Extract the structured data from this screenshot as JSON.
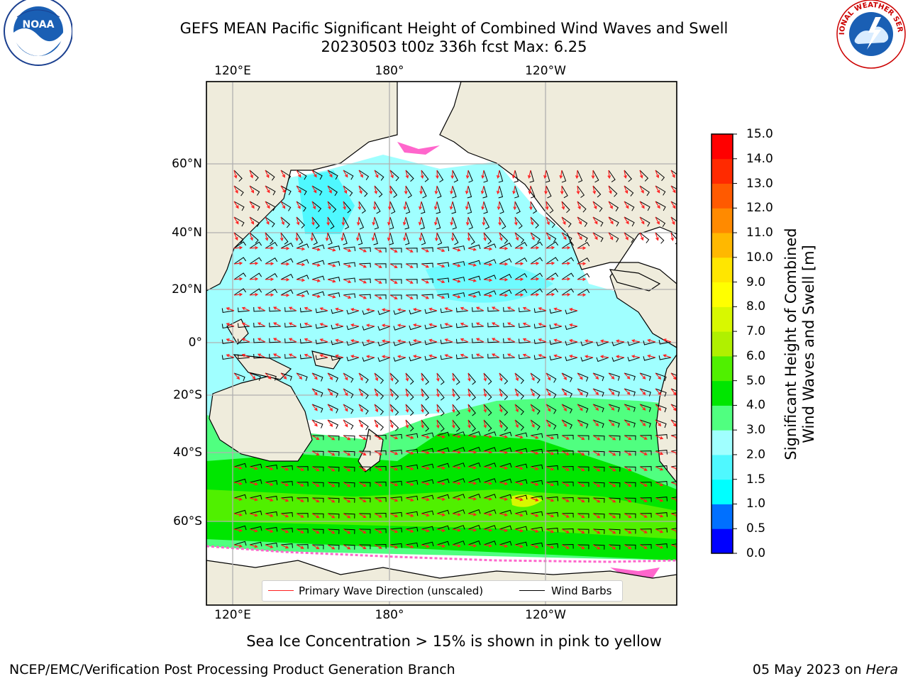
{
  "title": {
    "line1": "GEFS MEAN Pacific Significant Height of Combined Wind Waves and Swell",
    "line2": "20230503 t00z 336h fcst   Max: 6.25"
  },
  "logos": {
    "left": {
      "icon": "noaa-logo",
      "text": "NOAA"
    },
    "right": {
      "icon": "national-weather-service-logo",
      "text": "NATIONAL WEATHER SERVICE"
    }
  },
  "map": {
    "lon_ticks_top": [
      "120°E",
      "180°",
      "120°W"
    ],
    "lon_ticks_bottom": [
      "120°E",
      "180°",
      "120°W"
    ],
    "lat_ticks": [
      "60°N",
      "40°N",
      "20°N",
      "0°",
      "20°S",
      "40°S",
      "60°S"
    ],
    "colors": {
      "land": "#efecdc",
      "coast": "#000000",
      "grid": "#b0b0b0",
      "wave_arrow": "#ff2020",
      "barb": "#000000",
      "sea_ice": "#ff66cc"
    },
    "legend": {
      "primary_wave": "Primary Wave Direction (unscaled)",
      "barbs": "Wind Barbs"
    }
  },
  "colorbar": {
    "label_line1": "Significant Height of Combined",
    "label_line2": "Wind Waves and Swell [m]",
    "ticks": [
      "0.0",
      "0.5",
      "1.0",
      "1.5",
      "2.0",
      "3.0",
      "4.0",
      "5.0",
      "6.0",
      "7.0",
      "8.0",
      "9.0",
      "10.0",
      "11.0",
      "12.0",
      "13.0",
      "14.0",
      "15.0"
    ],
    "colors": [
      "#0000ff",
      "#0070ff",
      "#00ffff",
      "#4ff8ff",
      "#a0ffff",
      "#50ff80",
      "#00e600",
      "#50f000",
      "#b0f000",
      "#d8f800",
      "#ffff00",
      "#ffe600",
      "#ffb800",
      "#ff8a00",
      "#ff5a00",
      "#ff2a00",
      "#ff0000"
    ]
  },
  "chart_data": {
    "type": "heatmap",
    "title": "GEFS MEAN Pacific Significant Height of Combined Wind Waves and Swell",
    "subtitle": "20230503 t00z 336h fcst   Max: 6.25",
    "variable": "Significant Height of Combined Wind Waves and Swell [m]",
    "max_value": 6.25,
    "color_levels": [
      0.0,
      0.5,
      1.0,
      1.5,
      2.0,
      3.0,
      4.0,
      5.0,
      6.0,
      7.0,
      8.0,
      9.0,
      10.0,
      11.0,
      12.0,
      13.0,
      14.0,
      15.0
    ]
  },
  "annotation": "Sea Ice Concentration > 15% is shown in pink to yellow",
  "footer": {
    "left": "NCEP/EMC/Verification Post Processing Product Generation Branch",
    "date": "05 May 2023 on ",
    "machine": "Hera"
  }
}
